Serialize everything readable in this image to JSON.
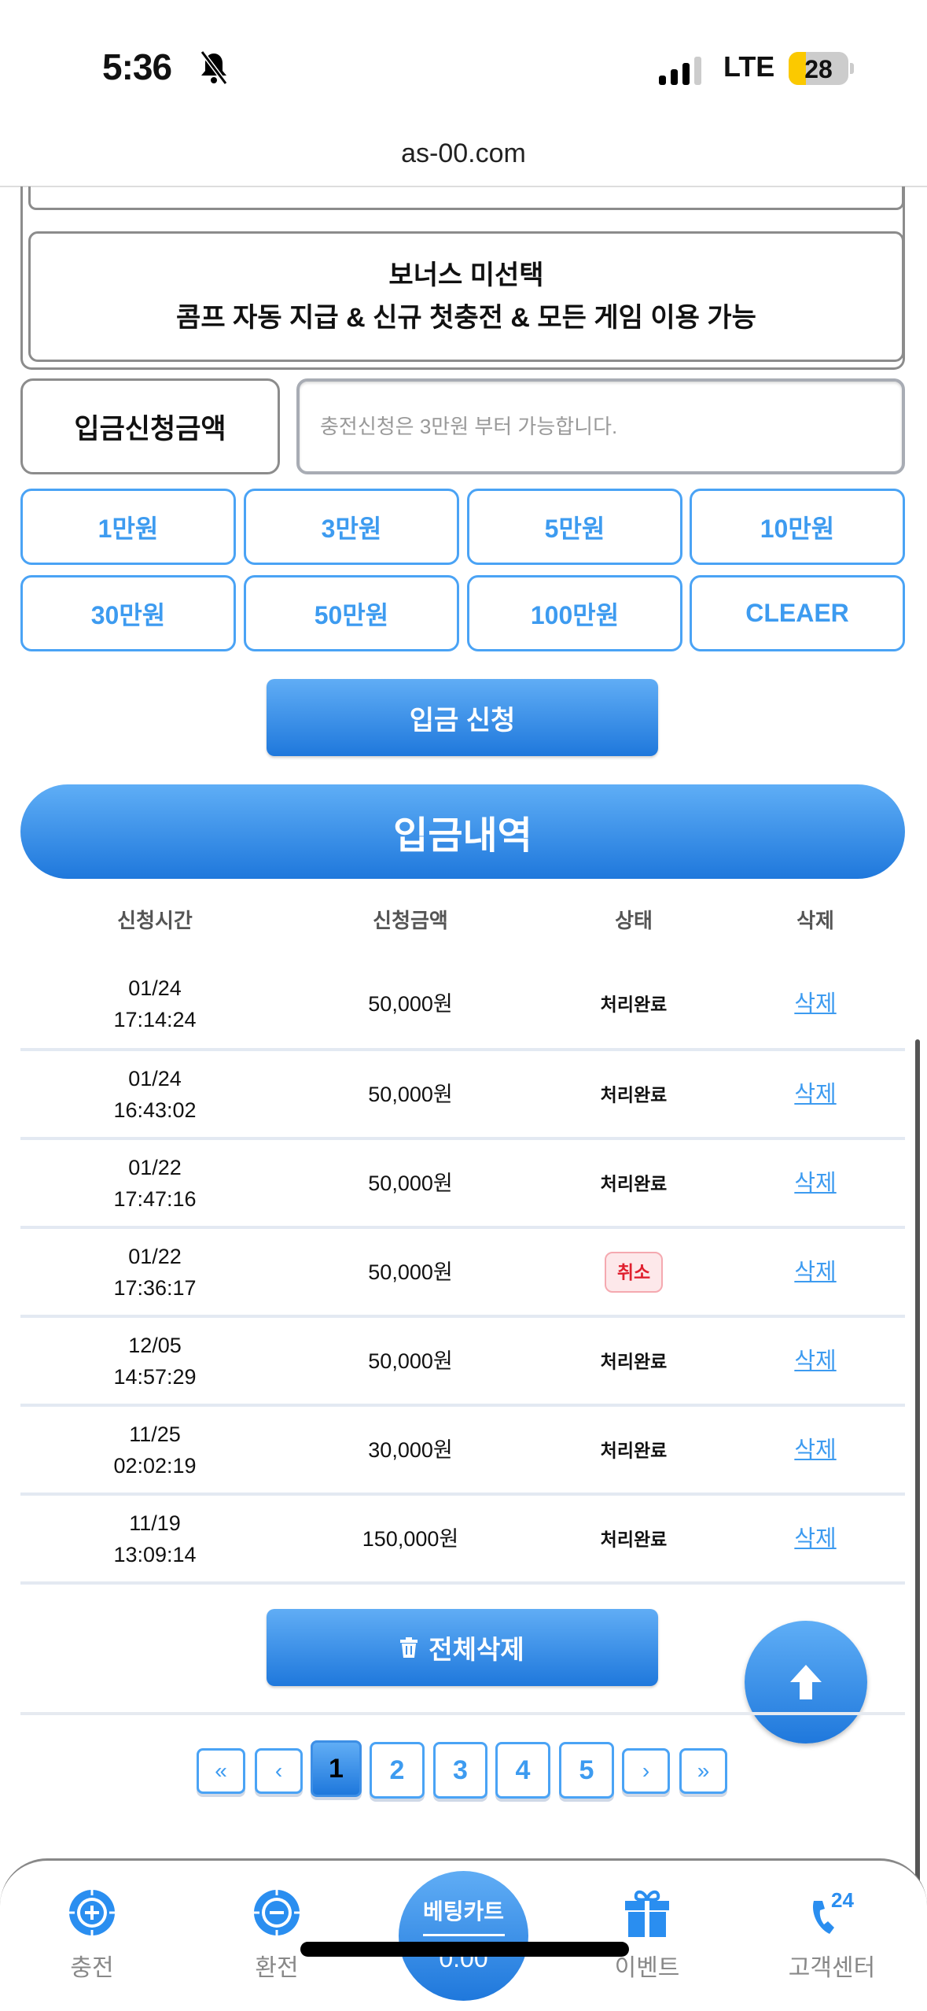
{
  "status_bar": {
    "time": "5:36",
    "network": "LTE",
    "battery": "28",
    "battery_level_percent": 28,
    "signal_bars": 3,
    "signal_bars_max": 4
  },
  "browser": {
    "url": "as-00.com"
  },
  "bonus": {
    "line1": "보너스 미선택",
    "line2": "콤프 자동 지급 & 신규 첫충전 & 모든 게임 이용 가능"
  },
  "deposit": {
    "label": "입금신청금액",
    "input_value": "",
    "placeholder": "충전신청은 3만원 부터 가능합니다.",
    "amount_buttons": [
      "1만원",
      "3만원",
      "5만원",
      "10만원",
      "30만원",
      "50만원",
      "100만원",
      "CLEAER"
    ],
    "submit_label": "입금 신청"
  },
  "history": {
    "title": "입금내역",
    "columns": [
      "신청시간",
      "신청금액",
      "상태",
      "삭제"
    ],
    "rows": [
      {
        "date": "01/24",
        "time": "17:14:24",
        "amount": "50,000원",
        "status": "처리완료",
        "delete": "삭제"
      },
      {
        "date": "01/24",
        "time": "16:43:02",
        "amount": "50,000원",
        "status": "처리완료",
        "delete": "삭제"
      },
      {
        "date": "01/22",
        "time": "17:47:16",
        "amount": "50,000원",
        "status": "처리완료",
        "delete": "삭제"
      },
      {
        "date": "01/22",
        "time": "17:36:17",
        "amount": "50,000원",
        "status": "취소",
        "delete": "삭제"
      },
      {
        "date": "12/05",
        "time": "14:57:29",
        "amount": "50,000원",
        "status": "처리완료",
        "delete": "삭제"
      },
      {
        "date": "11/25",
        "time": "02:02:19",
        "amount": "30,000원",
        "status": "처리완료",
        "delete": "삭제"
      },
      {
        "date": "11/19",
        "time": "13:09:14",
        "amount": "150,000원",
        "status": "처리완료",
        "delete": "삭제"
      }
    ],
    "delete_all_label": "전체삭제"
  },
  "pagination": {
    "first": "«",
    "prev": "‹",
    "pages": [
      "1",
      "2",
      "3",
      "4",
      "5"
    ],
    "current": "1",
    "next": "›",
    "last": "»"
  },
  "bottom_nav": {
    "items": [
      {
        "label": "충전",
        "icon": "chip-plus-icon"
      },
      {
        "label": "환전",
        "icon": "chip-minus-icon"
      },
      {
        "label": "이벤트",
        "icon": "gift-icon"
      },
      {
        "label": "고객센터",
        "icon": "phone-24-icon"
      }
    ],
    "bet_cart": {
      "label": "베팅카트",
      "value": "0.00"
    }
  },
  "colors": {
    "accent": "#3d9bf0",
    "accent_dark": "#1f78dc",
    "cancel": "#e0202f",
    "battery_low_power": "#fbc900"
  }
}
